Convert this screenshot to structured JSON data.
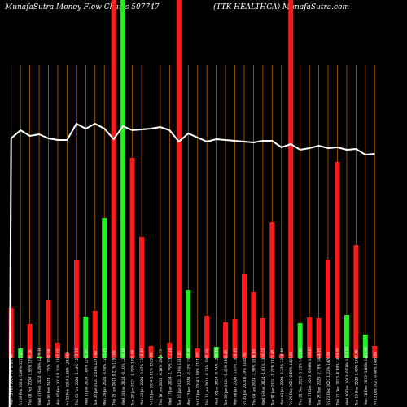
{
  "header": {
    "title": "MunafaSutra  Money Flow  Charts 507747",
    "subtitle": "(TTK HEALTHCA) MunafaSutra.com"
  },
  "colors": {
    "background": "#000000",
    "positive": "#22ee22",
    "negative": "#ff1a1a",
    "grid": "#b36200",
    "line": "#ffffff",
    "text": "#ffffff"
  },
  "chart_data": {
    "type": "bar",
    "title": "MunafaSutra  Money Flow  Charts 507747",
    "subtitle": "(TTK HEALTHCA) MunafaSutra.com",
    "categories": [
      "Mon 12 Feb 2024 1% 1286.40",
      "Fri 09 Feb 2024 -1.86% 1272.05",
      "Thu 08 Feb 2024 1.55% 1296.20",
      "Wed 07 Feb 2024 -0.29% 1276.30",
      "Tue 06 Feb 2024 -1.35% 1280.00",
      "Mon 05 Feb 2024 0.30% 1297.45",
      "Fri 02 Feb 2024 1.66% 1293.65",
      "Thu 01 Feb 2024 -1.44% 1272.55",
      "Wed 31 Jan 2024 1.04% 1291.20",
      "Tue 30 Jan 2024 2.58% 1277.90",
      "Mon 29 Jan 2024 -3.94% 1245.85",
      "Thu 25 Jan 2024 0.21% 1297.00",
      "Wed 24 Jan 2024 -0.10% 1294.30",
      "Tue 23 Jan 2024 -1.73% 1295.60",
      "Mon 22 Jan 2024 -0.87% 1318.40",
      "Fri 19 Jan 2024 1.61% 1329.85",
      "Thu 18 Jan 2024 -0.18% 1308.75",
      "Wed 17 Jan 2024 -1.79% 1311.10",
      "Tue 16 Jan 2024 1.29% 1335.05",
      "Mon 15 Jan 2024 -0.22% 1318.10",
      "Fri 12 Jan 2024 1.98% 1321.05",
      "Thu 11 Jan 2024 -0.33% 1295.40",
      "Wed 10 Jan 2024 -0.74% 1299.75",
      "Tue 09 Jan 2024 -1.45% 1309.45",
      "Mon 08 Jan 2024 -0.87% 1328.85",
      "Fri 05 Jan 2024 0.19% 1340.50",
      "Thu 04 Jan 2024 -1.59% 1338.00",
      "Wed 03 Jan 2024 -1.01% 1359.65",
      "Tue 02 Jan 2024 -1.22% 1373.45",
      "Mon 01 Jan 2024 -2.33% 1390.40",
      "Fri 29 Dec 2023 0.69% 1423.60",
      "Thu 28 Dec 2023 -1.19% 1413.80",
      "Wed 27 Dec 2023 -0.98% 1430.85",
      "Tue 26 Dec 2023 -2.16% 1444.95",
      "Fri 22 Dec 2023 1.22% 1476.90",
      "Thu 21 Dec 2023 -0.90% 1459.05",
      "Wed 20 Dec 2023 -0.68% 1472.30",
      "Tue 19 Dec 2023 1.40% 1482.40",
      "Mon 18 Dec 2023 -1.86% 1461.95",
      "Fri 15 Dec 2023 0.48% 1489.60"
    ],
    "series": [
      {
        "values": [
          {
            "value": 62,
            "color": "red"
          },
          {
            "value": 12,
            "color": "green"
          },
          {
            "value": 42,
            "color": "red"
          },
          {
            "value": 2,
            "color": "green"
          },
          {
            "value": 72,
            "color": "red"
          },
          {
            "value": 19,
            "color": "red"
          },
          {
            "value": 6,
            "color": "red"
          },
          {
            "value": 120,
            "color": "red"
          },
          {
            "value": 51,
            "color": "green"
          },
          {
            "value": 58,
            "color": "red"
          },
          {
            "value": 172,
            "color": "green"
          },
          {
            "value": 440,
            "color": "red"
          },
          {
            "value": 440,
            "color": "green"
          },
          {
            "value": 246,
            "color": "red"
          },
          {
            "value": 149,
            "color": "red"
          },
          {
            "value": 15,
            "color": "red"
          },
          {
            "value": 2,
            "color": "green"
          },
          {
            "value": 19,
            "color": "red"
          },
          {
            "value": 440,
            "color": "red"
          },
          {
            "value": 84,
            "color": "green"
          },
          {
            "value": 12,
            "color": "red"
          },
          {
            "value": 52,
            "color": "red"
          },
          {
            "value": 14,
            "color": "green"
          },
          {
            "value": 44,
            "color": "red"
          },
          {
            "value": 48,
            "color": "red"
          },
          {
            "value": 104,
            "color": "red"
          },
          {
            "value": 81,
            "color": "red"
          },
          {
            "value": 49,
            "color": "red"
          },
          {
            "value": 167,
            "color": "red"
          },
          {
            "value": 5,
            "color": "red"
          },
          {
            "value": 440,
            "color": "red"
          },
          {
            "value": 43,
            "color": "green"
          },
          {
            "value": 50,
            "color": "red"
          },
          {
            "value": 49,
            "color": "red"
          },
          {
            "value": 121,
            "color": "red"
          },
          {
            "value": 241,
            "color": "red"
          },
          {
            "value": 53,
            "color": "green"
          },
          {
            "value": 139,
            "color": "red"
          },
          {
            "value": 29,
            "color": "green"
          },
          {
            "value": 15,
            "color": "red"
          }
        ]
      }
    ],
    "price_line": [
      170,
      160,
      167,
      165,
      170,
      172,
      172,
      152,
      158,
      152,
      158,
      171,
      155,
      160,
      159,
      158,
      156,
      160,
      174,
      164,
      169,
      174,
      171,
      172,
      173,
      174,
      175,
      173,
      173,
      181,
      177,
      184,
      182,
      179,
      182,
      181,
      184,
      183,
      190,
      189
    ],
    "ylim": [
      0,
      440
    ],
    "grid": true
  }
}
